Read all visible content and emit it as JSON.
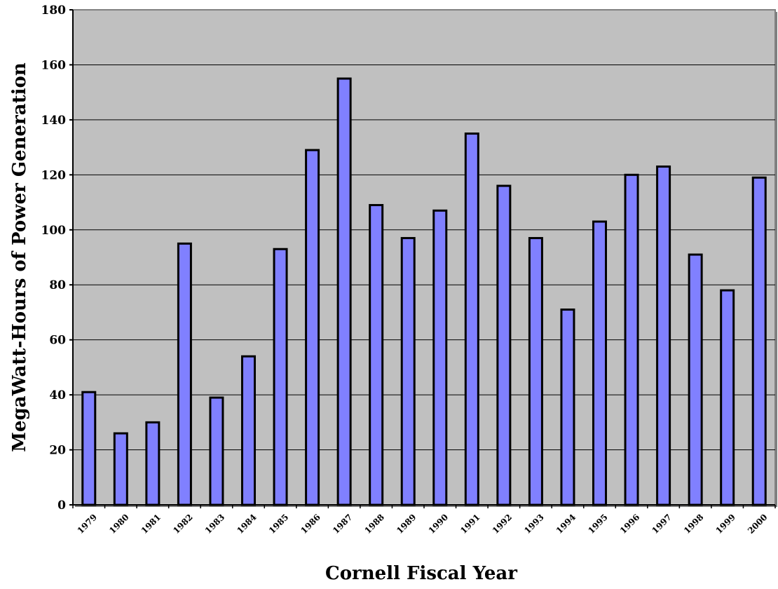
{
  "chart_data": {
    "type": "bar",
    "title": "",
    "xlabel": "Cornell Fiscal Year",
    "ylabel": "MegaWatt-Hours of Power Generation",
    "ylim": [
      0,
      180
    ],
    "yticks": [
      0,
      20,
      40,
      60,
      80,
      100,
      120,
      140,
      160,
      180
    ],
    "grid": true,
    "legend": "none",
    "categories": [
      "1979",
      "1980",
      "1981",
      "1982",
      "1983",
      "1984",
      "1985",
      "1986",
      "1987",
      "1988",
      "1989",
      "1990",
      "1991",
      "1992",
      "1993",
      "1994",
      "1995",
      "1996",
      "1997",
      "1998",
      "1999",
      "2000"
    ],
    "values": [
      41,
      26,
      30,
      95,
      39,
      54,
      93,
      129,
      155,
      109,
      97,
      107,
      135,
      116,
      97,
      71,
      103,
      120,
      123,
      91,
      78,
      119
    ],
    "colors": {
      "bar_fill": "#8080ff",
      "bar_stroke": "#000000",
      "plot_background": "#c0c0c0",
      "gridline": "#000000"
    }
  }
}
